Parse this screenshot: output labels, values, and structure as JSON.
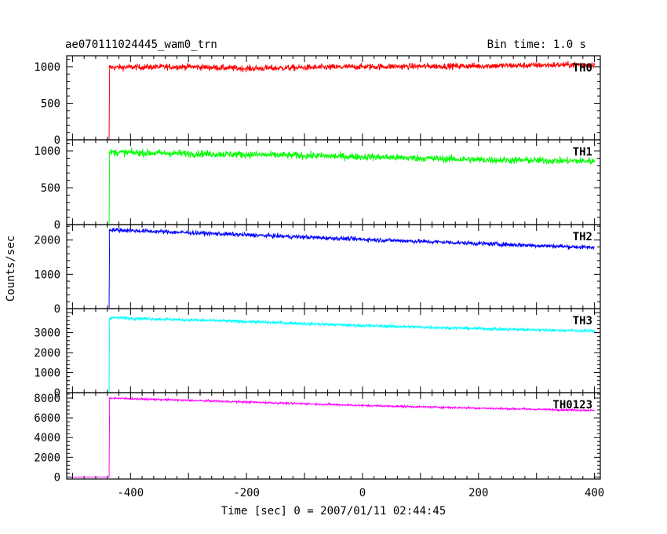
{
  "header": {
    "title": "ae070111024445_wam0_trn",
    "bin_time": "Bin time: 1.0 s"
  },
  "chart_data": {
    "type": "line",
    "xlabel": "Time [sec] 0 = 2007/01/11 02:44:45",
    "ylabel": "Counts/sec",
    "xlim": [
      -510,
      410
    ],
    "x_ticks": [
      -400,
      -200,
      0,
      200,
      400
    ],
    "grid": false,
    "panels": [
      {
        "name": "TH0",
        "color": "#ff0000",
        "ylim": [
          0,
          1150
        ],
        "y_ticks": [
          0,
          500,
          1000
        ],
        "baseline": {
          "x": [
            -500,
            -437
          ],
          "value": 0
        },
        "onset": -437,
        "trend": {
          "x": [
            -437,
            -300,
            -200,
            0,
            200,
            400
          ],
          "y": [
            990,
            1000,
            975,
            1000,
            1010,
            1030
          ]
        },
        "noise": 30
      },
      {
        "name": "TH1",
        "color": "#00ff00",
        "ylim": [
          0,
          1150
        ],
        "y_ticks": [
          0,
          500,
          1000
        ],
        "baseline": {
          "x": [
            -500,
            -437
          ],
          "value": 0
        },
        "onset": -437,
        "trend": {
          "x": [
            -437,
            -200,
            0,
            200,
            400
          ],
          "y": [
            980,
            950,
            920,
            880,
            860
          ]
        },
        "noise": 35
      },
      {
        "name": "TH2",
        "color": "#0000ff",
        "ylim": [
          0,
          2450
        ],
        "y_ticks": [
          0,
          1000,
          2000
        ],
        "baseline": {
          "x": [
            -500,
            -437
          ],
          "value": 0
        },
        "onset": -437,
        "trend": {
          "x": [
            -437,
            -200,
            0,
            200,
            400
          ],
          "y": [
            2300,
            2150,
            2020,
            1900,
            1780
          ]
        },
        "noise": 45
      },
      {
        "name": "TH3",
        "color": "#00ffff",
        "ylim": [
          0,
          4200
        ],
        "y_ticks": [
          0,
          1000,
          2000,
          3000
        ],
        "baseline": {
          "x": [
            -500,
            -437
          ],
          "value": 0
        },
        "onset": -437,
        "trend": {
          "x": [
            -437,
            -200,
            0,
            200,
            400
          ],
          "y": [
            3750,
            3550,
            3350,
            3200,
            3080
          ]
        },
        "noise": 55
      },
      {
        "name": "TH0123",
        "color": "#ff00ff",
        "ylim": [
          -200,
          8550
        ],
        "y_ticks": [
          0,
          2000,
          4000,
          6000,
          8000
        ],
        "baseline": {
          "x": [
            -500,
            -437
          ],
          "value": 0
        },
        "onset": -437,
        "trend": {
          "x": [
            -437,
            -200,
            0,
            200,
            400
          ],
          "y": [
            8000,
            7600,
            7250,
            6980,
            6750
          ]
        },
        "noise": 70
      }
    ]
  }
}
